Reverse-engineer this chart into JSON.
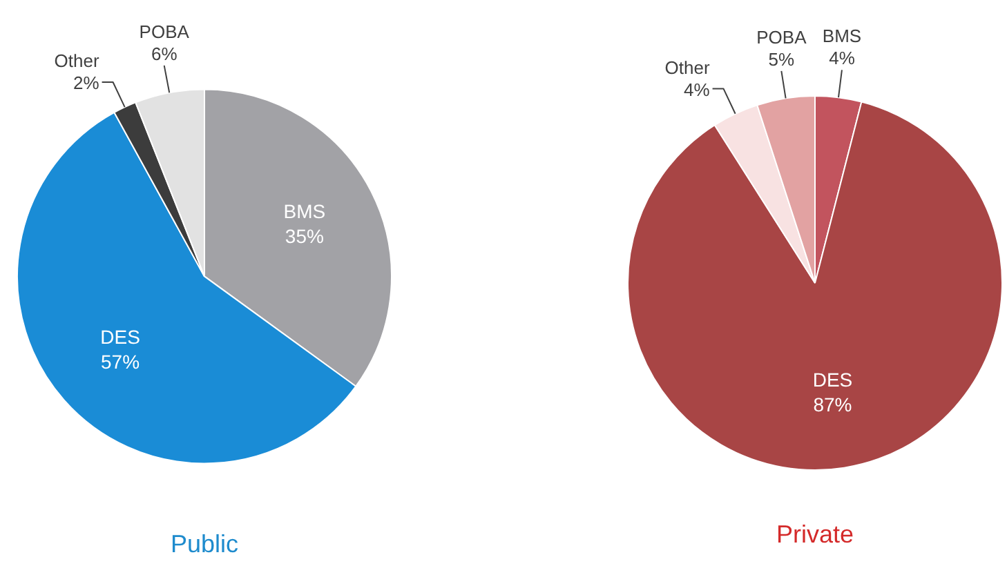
{
  "chart_data": [
    {
      "type": "pie",
      "title": "Public",
      "categories": [
        "BMS",
        "DES",
        "Other",
        "POBA"
      ],
      "values": [
        35,
        57,
        2,
        6
      ],
      "colors": [
        "#a2a2a6",
        "#1a8cd6",
        "#3c3c3c",
        "#e2e2e2"
      ],
      "value_labels": [
        "35%",
        "57%",
        "2%",
        "6%"
      ],
      "legend": false
    },
    {
      "type": "pie",
      "title": "Private",
      "categories": [
        "BMS",
        "DES",
        "Other",
        "POBA"
      ],
      "values": [
        4,
        87,
        4,
        5
      ],
      "colors": [
        "#c2545e",
        "#a84545",
        "#f8e2e2",
        "#e2a2a2"
      ],
      "value_labels": [
        "4%",
        "87%",
        "4%",
        "5%"
      ],
      "legend": false
    }
  ]
}
